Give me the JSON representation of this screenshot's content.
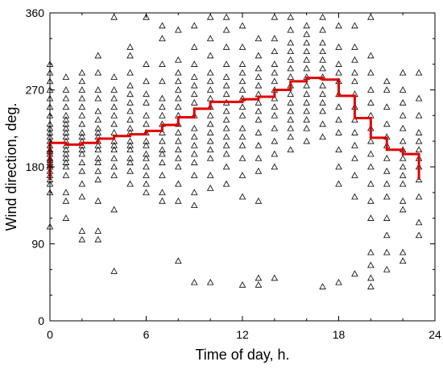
{
  "chart_data": {
    "type": "scatter",
    "title": "",
    "xlabel": "Time of day, h.",
    "ylabel": "Wind direction, deg.",
    "xlim": [
      0,
      24
    ],
    "ylim": [
      0,
      360
    ],
    "xticks": [
      "0",
      "6",
      "12",
      "18",
      "24"
    ],
    "yticks": [
      "0",
      "90",
      "180",
      "270",
      "360"
    ],
    "grid": false,
    "legend": "none",
    "marker_color": "#000000",
    "line_color": "#e00000",
    "series": [
      {
        "kind": "scatter",
        "marker": "open-triangle",
        "columns": [
          {
            "x": 0,
            "y": [
              110,
              150,
              160,
              165,
              170,
              175,
              180,
              182,
              185,
              188,
              190,
              195,
              198,
              200,
              205,
              210,
              215,
              220,
              225,
              230,
              240,
              250,
              260,
              270,
              280,
              290,
              300
            ]
          },
          {
            "x": 1,
            "y": [
              120,
              140,
              150,
              170,
              180,
              185,
              190,
              195,
              200,
              205,
              210,
              215,
              220,
              225,
              230,
              235,
              240,
              250,
              260,
              270,
              285
            ]
          },
          {
            "x": 2,
            "y": [
              95,
              105,
              145,
              160,
              175,
              185,
              195,
              200,
              205,
              210,
              215,
              220,
              230,
              240,
              250,
              260,
              270,
              280,
              290
            ]
          },
          {
            "x": 3,
            "y": [
              95,
              105,
              140,
              165,
              175,
              185,
              190,
              200,
              205,
              210,
              215,
              220,
              225,
              235,
              245,
              260,
              270,
              290,
              310
            ]
          },
          {
            "x": 4,
            "y": [
              58,
              130,
              170,
              180,
              190,
              200,
              205,
              210,
              220,
              230,
              240,
              250,
              260,
              270,
              285,
              355
            ]
          },
          {
            "x": 5,
            "y": [
              160,
              175,
              185,
              190,
              200,
              205,
              210,
              220,
              225,
              235,
              245,
              255,
              265,
              275,
              290,
              310,
              320
            ]
          },
          {
            "x": 6,
            "y": [
              150,
              160,
              170,
              180,
              190,
              195,
              205,
              210,
              220,
              230,
              240,
              255,
              265,
              280,
              300,
              355
            ]
          },
          {
            "x": 7,
            "y": [
              140,
              150,
              170,
              185,
              195,
              200,
              210,
              220,
              230,
              240,
              250,
              260,
              280,
              300,
              330,
              345
            ]
          },
          {
            "x": 8,
            "y": [
              70,
              140,
              160,
              180,
              190,
              200,
              210,
              220,
              230,
              240,
              250,
              260,
              270,
              280,
              290,
              305,
              340
            ]
          },
          {
            "x": 9,
            "y": [
              45,
              135,
              150,
              170,
              185,
              195,
              205,
              215,
              225,
              240,
              255,
              265,
              275,
              285,
              300,
              320,
              345
            ]
          },
          {
            "x": 10,
            "y": [
              45,
              155,
              170,
              190,
              200,
              210,
              220,
              230,
              240,
              250,
              260,
              270,
              280,
              290,
              310,
              330,
              355
            ]
          },
          {
            "x": 11,
            "y": [
              160,
              180,
              195,
              205,
              215,
              225,
              235,
              245,
              255,
              265,
              275,
              285,
              300,
              320,
              340,
              355
            ]
          },
          {
            "x": 12,
            "y": [
              42,
              145,
              170,
              190,
              205,
              215,
              225,
              240,
              250,
              260,
              270,
              280,
              290,
              300,
              320,
              345
            ]
          },
          {
            "x": 13,
            "y": [
              42,
              50,
              140,
              175,
              190,
              205,
              220,
              235,
              245,
              255,
              265,
              275,
              285,
              295,
              310,
              330
            ]
          },
          {
            "x": 14,
            "y": [
              50,
              180,
              195,
              210,
              225,
              240,
              250,
              260,
              270,
              280,
              290,
              300,
              315,
              330,
              355
            ]
          },
          {
            "x": 15,
            "y": [
              200,
              215,
              225,
              235,
              245,
              255,
              265,
              275,
              285,
              295,
              305,
              315,
              325,
              340,
              355
            ]
          },
          {
            "x": 16,
            "y": [
              210,
              225,
              235,
              245,
              255,
              265,
              275,
              285,
              295,
              305,
              315,
              325,
              335,
              345
            ]
          },
          {
            "x": 17,
            "y": [
              40,
              215,
              230,
              245,
              255,
              265,
              275,
              285,
              295,
              305,
              315,
              325,
              340,
              355
            ]
          },
          {
            "x": 18,
            "y": [
              45,
              160,
              180,
              200,
              220,
              235,
              250,
              265,
              280,
              290,
              300,
              320,
              345
            ]
          },
          {
            "x": 19,
            "y": [
              55,
              145,
              170,
              190,
              205,
              220,
              235,
              250,
              265,
              280,
              290,
              305,
              320,
              345
            ]
          },
          {
            "x": 20,
            "y": [
              40,
              50,
              65,
              80,
              120,
              140,
              160,
              180,
              195,
              210,
              225,
              240,
              255,
              270,
              290,
              310,
              355
            ]
          },
          {
            "x": 21,
            "y": [
              60,
              80,
              100,
              120,
              145,
              160,
              175,
              190,
              205,
              215,
              230,
              250,
              270,
              280
            ]
          },
          {
            "x": 22,
            "y": [
              70,
              80,
              130,
              140,
              160,
              170,
              180,
              190,
              200,
              210,
              225,
              240,
              255,
              270,
              290
            ]
          },
          {
            "x": 23,
            "y": [
              100,
              115,
              145,
              165,
              180,
              190,
              200,
              210,
              220,
              240,
              260,
              290
            ]
          }
        ]
      },
      {
        "kind": "step-mean",
        "hours": [
          0,
          1,
          2,
          3,
          4,
          5,
          6,
          7,
          8,
          9,
          10,
          11,
          12,
          13,
          14,
          15,
          16,
          17,
          18,
          19,
          20,
          21,
          22,
          23
        ],
        "values": [
          208,
          206,
          208,
          213,
          216,
          218,
          222,
          229,
          238,
          248,
          256,
          256,
          259,
          262,
          270,
          280,
          284,
          282,
          263,
          237,
          214,
          200,
          195,
          196
        ]
      }
    ]
  }
}
